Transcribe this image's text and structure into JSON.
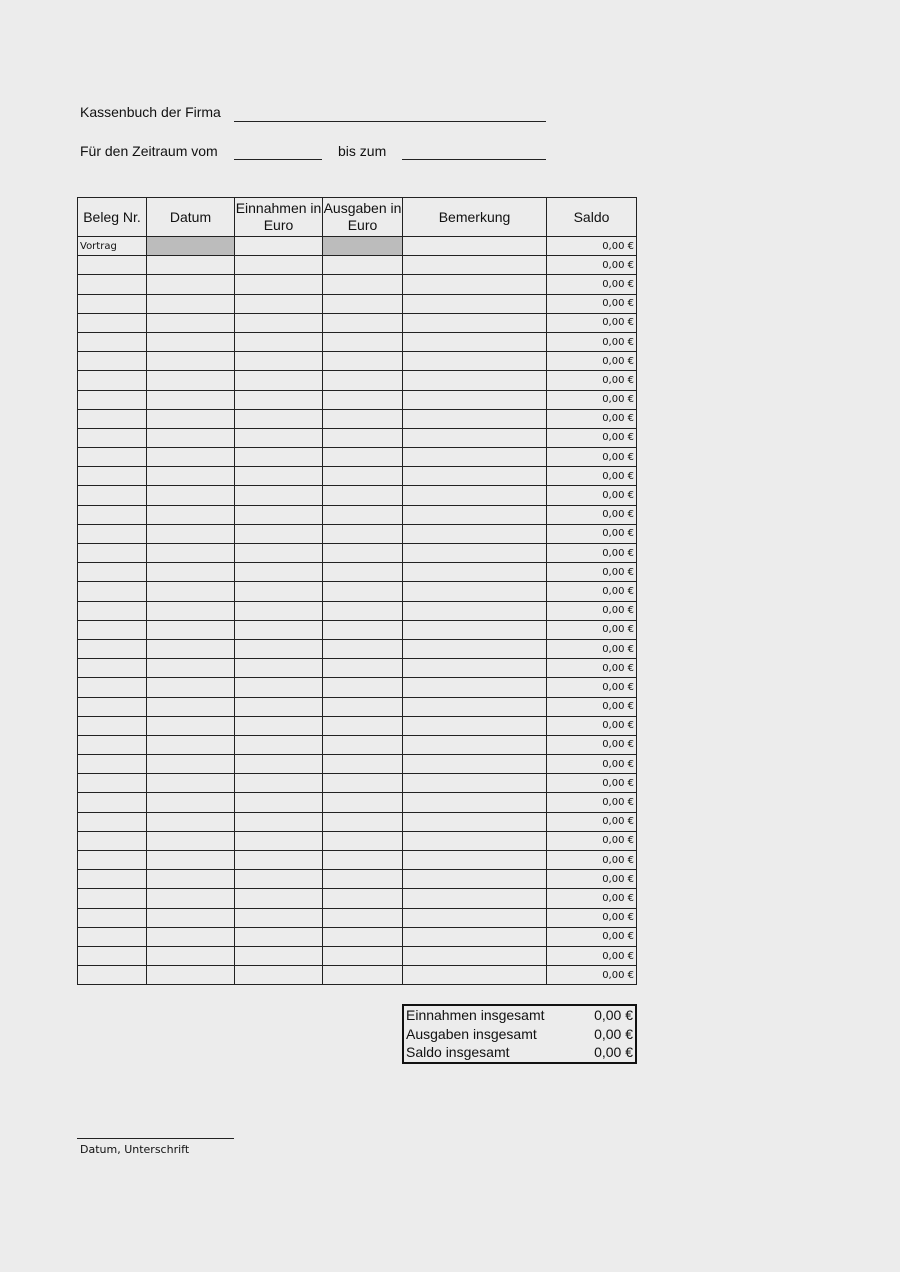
{
  "header": {
    "company_label": "Kassenbuch der Firma",
    "period_label": "Für den Zeitraum vom",
    "until_label": "bis zum"
  },
  "table": {
    "columns": [
      "Beleg Nr.",
      "Datum",
      "Einnahmen in Euro",
      "Ausgaben in Euro",
      "Bemerkung",
      "Saldo"
    ],
    "first_row_label": "Vortrag",
    "saldo_values": [
      "0,00 €",
      "0,00 €",
      "0,00 €",
      "0,00 €",
      "0,00 €",
      "0,00 €",
      "0,00 €",
      "0,00 €",
      "0,00 €",
      "0,00 €",
      "0,00 €",
      "0,00 €",
      "0,00 €",
      "0,00 €",
      "0,00 €",
      "0,00 €",
      "0,00 €",
      "0,00 €",
      "0,00 €",
      "0,00 €",
      "0,00 €",
      "0,00 €",
      "0,00 €",
      "0,00 €",
      "0,00 €",
      "0,00 €",
      "0,00 €",
      "0,00 €",
      "0,00 €",
      "0,00 €",
      "0,00 €",
      "0,00 €",
      "0,00 €",
      "0,00 €",
      "0,00 €",
      "0,00 €",
      "0,00 €",
      "0,00 €",
      "0,00 €"
    ],
    "shaded_color": "#bcbcbc"
  },
  "summary": [
    {
      "label": "Einnahmen insgesamt",
      "value": "0,00 €"
    },
    {
      "label": "Ausgaben insgesamt",
      "value": "0,00 €"
    },
    {
      "label": "Saldo insgesamt",
      "value": "0,00 €"
    }
  ],
  "signature": {
    "label": "Datum, Unterschrift"
  }
}
